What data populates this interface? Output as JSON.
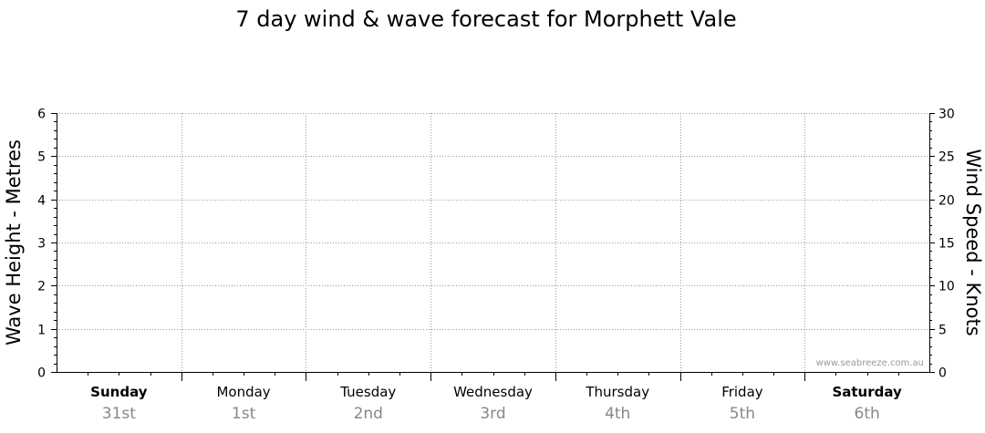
{
  "chart_data": {
    "type": "line",
    "title": "7 day wind & wave forecast for Morphett Vale",
    "ylabel": "Wave Height - Metres",
    "y2label": "Wind Speed - Knots",
    "ylim": [
      0,
      6
    ],
    "y2lim": [
      0,
      30
    ],
    "yticks": [
      "0",
      "1",
      "2",
      "3",
      "4",
      "5",
      "6"
    ],
    "y2ticks": [
      "0",
      "5",
      "10",
      "15",
      "20",
      "25",
      "30"
    ],
    "grid": true,
    "days": [
      {
        "name": "Sunday",
        "date": "31st",
        "bold": true
      },
      {
        "name": "Monday",
        "date": "1st",
        "bold": false
      },
      {
        "name": "Tuesday",
        "date": "2nd",
        "bold": false
      },
      {
        "name": "Wednesday",
        "date": "3rd",
        "bold": false
      },
      {
        "name": "Thursday",
        "date": "4th",
        "bold": false
      },
      {
        "name": "Friday",
        "date": "5th",
        "bold": false
      },
      {
        "name": "Saturday",
        "date": "6th",
        "bold": true
      }
    ],
    "series": []
  },
  "watermark": "www.seabreeze.com.au",
  "colors": {
    "grid": "#999999",
    "axis": "#000000",
    "date_text": "#888888",
    "watermark": "#999999"
  }
}
